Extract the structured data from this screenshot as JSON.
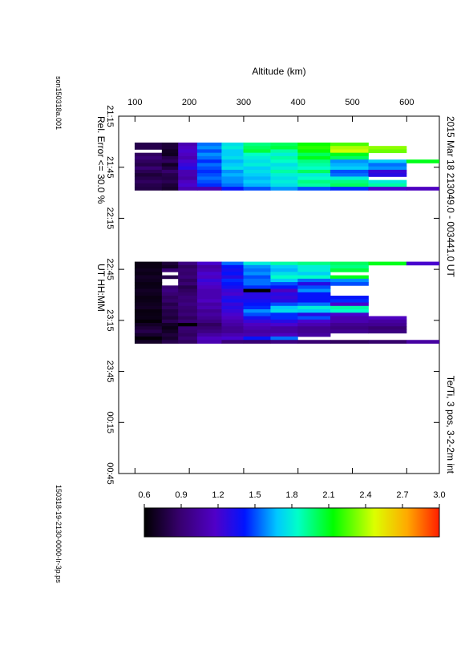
{
  "page": {
    "title": "2015 Mar 18   213049.0 - 003441.0 UT",
    "parameter_label": "Te/Ti, 3 pos, 3-2-2m int",
    "rel_error_label": "Rel. Error <= 30.0 %",
    "side_label_left": "son150318a.001",
    "side_label_right": "150318-19-2130-0000-Ir-3p.ps"
  },
  "chart_data": {
    "type": "heatmap",
    "title": "2015 Mar 18   213049.0 - 003441.0 UT",
    "xlabel": "UT   HH:MM",
    "ylabel": "Altitude (km)",
    "x_ticks": [
      "21:15",
      "21:45",
      "22:15",
      "22:45",
      "23:15",
      "23:45",
      "00:15",
      "00:45"
    ],
    "x_tick_minutes": [
      0,
      30,
      60,
      90,
      120,
      150,
      180,
      210
    ],
    "xlim_minutes": [
      0,
      210
    ],
    "y_ticks": [
      100,
      200,
      300,
      400,
      500,
      600
    ],
    "ylim": [
      70,
      660
    ],
    "colorbar": {
      "label": "Te/Ti, 3 pos, 3-2-2m int",
      "range": [
        0.6,
        3.0
      ],
      "ticks": [
        "0.6",
        "0.9",
        "1.2",
        "1.5",
        "1.8",
        "2.1",
        "2.4",
        "2.7",
        "3.0"
      ],
      "colormap": "rainbow (black - purple - blue - cyan - green - yellow - red)"
    },
    "altitude_bins": [
      [
        100,
        150
      ],
      [
        150,
        180
      ],
      [
        180,
        215
      ],
      [
        215,
        260
      ],
      [
        260,
        300
      ],
      [
        300,
        350
      ],
      [
        350,
        400
      ],
      [
        400,
        460
      ],
      [
        460,
        530
      ],
      [
        530,
        600
      ],
      [
        600,
        660
      ]
    ],
    "segments": [
      {
        "start_min": 15.5,
        "rows": [
          [
            0.8,
            0.75,
            1.1,
            1.55,
            1.75,
            1.95,
            2.0,
            2.15,
            2.25,
            null,
            null
          ],
          [
            0.8,
            0.75,
            1.15,
            1.6,
            1.8,
            2.0,
            2.05,
            2.2,
            2.4,
            2.35,
            null
          ],
          [
            null,
            0.7,
            1.2,
            1.5,
            1.7,
            2.05,
            1.9,
            2.15,
            2.45,
            2.3,
            null
          ],
          [
            0.85,
            0.68,
            1.15,
            1.6,
            1.7,
            1.85,
            1.8,
            2.0,
            2.1,
            null,
            null
          ],
          [
            0.9,
            0.8,
            1.1,
            1.55,
            1.75,
            1.8,
            1.9,
            2.1,
            2.0,
            null,
            null
          ],
          [
            0.85,
            0.85,
            1.2,
            1.45,
            1.65,
            1.75,
            1.85,
            1.95,
            1.6,
            1.7,
            2.1
          ],
          [
            0.8,
            0.7,
            1.25,
            1.55,
            1.7,
            1.8,
            1.75,
            1.9,
            1.65,
            1.55,
            null
          ],
          [
            0.9,
            0.78,
            1.3,
            1.5,
            1.75,
            1.7,
            1.8,
            1.85,
            1.7,
            1.6,
            null
          ],
          [
            0.82,
            0.88,
            1.1,
            1.45,
            1.6,
            1.75,
            1.9,
            2.0,
            1.5,
            1.25,
            null
          ],
          [
            0.75,
            0.8,
            1.1,
            1.5,
            1.65,
            1.7,
            1.8,
            1.8,
            1.55,
            1.3,
            null
          ],
          [
            0.8,
            0.78,
            1.05,
            1.55,
            1.6,
            1.65,
            1.75,
            1.85,
            1.8,
            null,
            null
          ],
          [
            0.85,
            0.82,
            1.15,
            1.5,
            1.6,
            1.7,
            1.8,
            1.95,
            1.95,
            1.8,
            null
          ],
          [
            0.8,
            0.75,
            1.2,
            1.45,
            1.55,
            1.65,
            1.75,
            1.9,
            2.0,
            1.9,
            null
          ],
          [
            0.78,
            0.72,
            1.1,
            1.1,
            1.4,
            1.5,
            1.6,
            1.5,
            1.45,
            1.2,
            1.15
          ]
        ]
      },
      {
        "start_min": 85.5,
        "rows": [
          [
            0.65,
            0.75,
            0.95,
            1.2,
            1.55,
            1.8,
            1.9,
            1.95,
            2.0,
            2.1,
            1.2
          ],
          [
            0.65,
            0.7,
            0.85,
            1.05,
            1.4,
            1.6,
            1.7,
            1.8,
            1.95,
            null,
            null
          ],
          [
            0.68,
            0.9,
            0.9,
            1.1,
            1.35,
            1.55,
            1.65,
            1.8,
            2.05,
            null,
            null
          ],
          [
            0.66,
            null,
            0.88,
            1.2,
            1.4,
            1.6,
            1.75,
            1.7,
            null,
            null,
            null
          ],
          [
            0.7,
            0.8,
            0.92,
            1.15,
            1.3,
            1.5,
            1.85,
            1.85,
            2.1,
            null,
            null
          ],
          [
            0.68,
            null,
            0.85,
            1.25,
            1.45,
            1.55,
            1.7,
            1.55,
            1.6,
            null,
            null
          ],
          [
            0.65,
            null,
            0.9,
            1.2,
            1.4,
            1.55,
            1.5,
            1.3,
            1.5,
            null,
            null
          ],
          [
            0.66,
            0.9,
            0.8,
            1.15,
            1.35,
            1.45,
            1.4,
            1.5,
            null,
            null,
            null
          ],
          [
            0.7,
            0.95,
            0.85,
            1.1,
            1.25,
            0.6,
            1.15,
            1.6,
            null,
            null,
            null
          ],
          [
            0.68,
            0.9,
            0.88,
            1.1,
            1.2,
            1.3,
            1.3,
            1.4,
            null,
            null,
            null
          ],
          [
            0.65,
            0.85,
            0.92,
            1.1,
            1.3,
            1.3,
            1.25,
            1.4,
            1.4,
            null,
            null
          ],
          [
            0.66,
            0.88,
            0.9,
            1.15,
            1.35,
            1.35,
            1.3,
            1.4,
            1.45,
            null,
            null
          ],
          [
            0.68,
            0.8,
            0.95,
            1.05,
            1.25,
            1.4,
            1.5,
            1.55,
            1.2,
            null,
            null
          ],
          [
            0.7,
            0.85,
            0.9,
            1.1,
            1.3,
            1.45,
            1.7,
            1.8,
            1.9,
            null,
            null
          ],
          [
            0.64,
            0.78,
            0.88,
            1.0,
            1.25,
            1.6,
            1.75,
            1.7,
            1.85,
            null,
            null
          ],
          [
            0.65,
            0.8,
            0.92,
            1.05,
            1.2,
            1.5,
            1.45,
            1.3,
            1.2,
            null,
            null
          ],
          [
            0.66,
            0.75,
            0.85,
            1.0,
            1.15,
            1.35,
            1.45,
            1.5,
            1.1,
            1.15,
            null
          ],
          [
            0.62,
            0.82,
            0.9,
            0.95,
            1.1,
            1.25,
            1.3,
            1.2,
            1.1,
            1.05,
            null
          ],
          [
            0.7,
            0.7,
            0.6,
            0.85,
            1.05,
            1.15,
            1.2,
            1.1,
            1.0,
            1.0,
            null
          ],
          [
            0.75,
            0.66,
            0.9,
            0.9,
            1.0,
            1.1,
            1.05,
            1.0,
            0.95,
            0.9,
            null
          ],
          [
            0.8,
            0.7,
            0.88,
            0.95,
            1.0,
            1.05,
            1.05,
            1.0,
            1.0,
            0.95,
            null
          ],
          [
            0.72,
            0.76,
            0.85,
            1.05,
            1.1,
            1.1,
            1.15,
            1.05,
            null,
            null,
            null
          ],
          [
            0.62,
            0.72,
            0.9,
            1.15,
            1.2,
            1.4,
            1.55,
            null,
            null,
            null,
            null
          ],
          [
            0.7,
            0.8,
            0.85,
            1.1,
            0.92,
            0.9,
            0.95,
            0.9,
            0.85,
            0.88,
            1.05
          ]
        ]
      }
    ]
  }
}
